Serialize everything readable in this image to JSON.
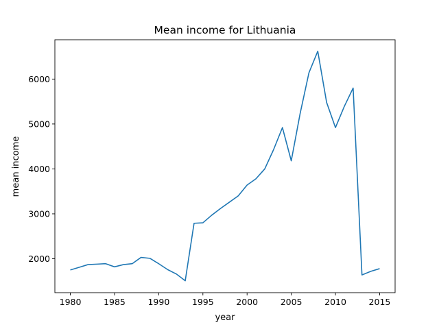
{
  "chart_data": {
    "type": "line",
    "title": "Mean income for Lithuania",
    "xlabel": "year",
    "ylabel": "mean income",
    "xlim": [
      1978.25,
      2016.75
    ],
    "ylim": [
      1245,
      6875
    ],
    "grid": false,
    "legend": "none",
    "x_ticks": [
      1980,
      1985,
      1990,
      1995,
      2000,
      2005,
      2010,
      2015
    ],
    "y_ticks": [
      2000,
      3000,
      4000,
      5000,
      6000
    ],
    "line_color": "#1f77b4",
    "series": [
      {
        "x": [
          1980,
          1981,
          1982,
          1983,
          1984,
          1985,
          1986,
          1987,
          1988,
          1989,
          1990,
          1991,
          1992,
          1993,
          1994,
          1995,
          1996,
          1997,
          1998,
          1999,
          2000,
          2001,
          2002,
          2003,
          2004,
          2005,
          2006,
          2007,
          2008,
          2009,
          2010,
          2011,
          2012,
          2013,
          2014,
          2015
        ],
        "y": [
          1750,
          1810,
          1870,
          1880,
          1890,
          1820,
          1870,
          1890,
          2030,
          2010,
          1890,
          1760,
          1660,
          1510,
          2790,
          2800,
          2970,
          3120,
          3260,
          3400,
          3640,
          3780,
          4000,
          4430,
          4920,
          4180,
          5230,
          6140,
          6620,
          5480,
          4920,
          5390,
          5800,
          1640,
          1720,
          1780
        ]
      }
    ]
  }
}
